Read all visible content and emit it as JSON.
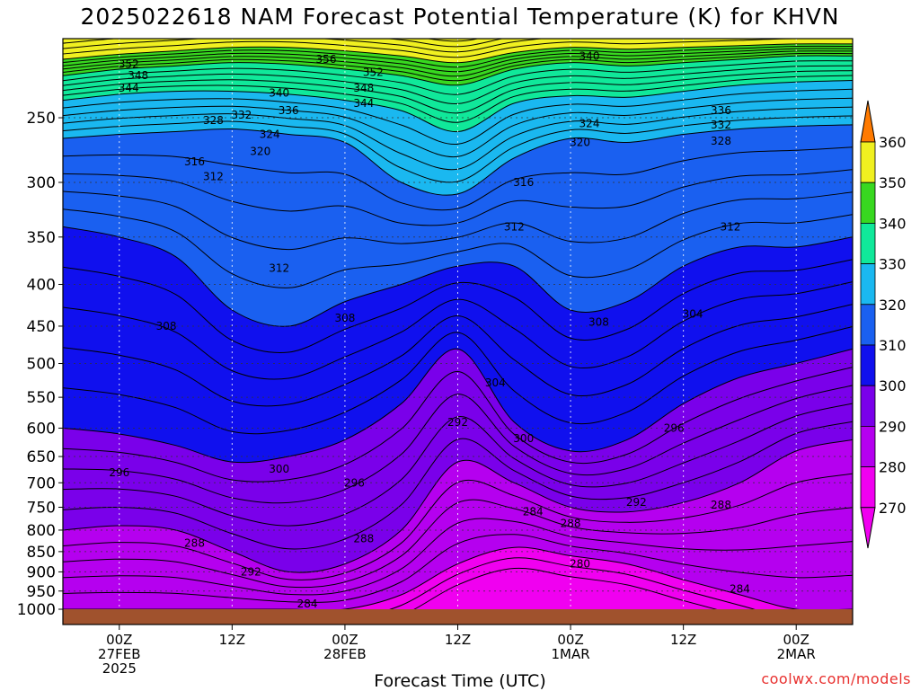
{
  "title": "2025022618 NAM Forecast Potential Temperature (K) for KHVN",
  "credit": "coolwx.com/models",
  "chart_data": {
    "type": "contour",
    "title": "2025022618 NAM Forecast Potential Temperature (K) for KHVN",
    "xlabel": "Forecast Time (UTC)",
    "ylabel": "",
    "y_scale": "log",
    "y_inverted": true,
    "ylim": [
      1000,
      200
    ],
    "xlim": [
      -6,
      78
    ],
    "x_units": "hours after 00Z 27FEB",
    "y_ticks": [
      250,
      300,
      350,
      400,
      450,
      500,
      550,
      600,
      650,
      700,
      750,
      800,
      850,
      900,
      950,
      1000
    ],
    "x_ticks": [
      {
        "x": 0,
        "lines": [
          "00Z",
          "27FEB",
          "2025"
        ]
      },
      {
        "x": 12,
        "lines": [
          "12Z"
        ]
      },
      {
        "x": 24,
        "lines": [
          "00Z",
          "28FEB"
        ]
      },
      {
        "x": 36,
        "lines": [
          "12Z"
        ]
      },
      {
        "x": 48,
        "lines": [
          "00Z",
          "1MAR"
        ]
      },
      {
        "x": 60,
        "lines": [
          "12Z"
        ]
      },
      {
        "x": 72,
        "lines": [
          "00Z",
          "2MAR"
        ]
      }
    ],
    "grid": true,
    "colorbar": {
      "levels": [
        270,
        280,
        290,
        300,
        310,
        320,
        330,
        340,
        350,
        360
      ],
      "colors": [
        "#f000f0",
        "#b500ef",
        "#7a00ea",
        "#1010ee",
        "#1a60f0",
        "#1ab8f0",
        "#10e89a",
        "#38d820",
        "#f0f020",
        "#ff7a00"
      ]
    },
    "contour_interval": 2,
    "contour_levels_labeled": [
      280,
      284,
      288,
      292,
      296,
      300,
      304,
      308,
      312,
      316,
      320,
      324,
      328,
      332,
      336,
      340,
      344,
      348,
      352,
      356
    ],
    "x_samples": [
      -6,
      0,
      6,
      12,
      18,
      24,
      30,
      36,
      42,
      48,
      54,
      60,
      66,
      72,
      78
    ],
    "isentrope_pressures": [
      {
        "theta": 280,
        "p": [
          1000,
          1000,
          1000,
          1000,
          1000,
          1000,
          960,
          880,
          840,
          860,
          880,
          920,
          960,
          1000,
          1000
        ]
      },
      {
        "theta": 290,
        "p": [
          800,
          790,
          800,
          850,
          900,
          880,
          800,
          660,
          700,
          750,
          760,
          740,
          700,
          640,
          620
        ]
      },
      {
        "theta": 300,
        "p": [
          600,
          610,
          630,
          660,
          650,
          620,
          560,
          480,
          590,
          640,
          620,
          560,
          520,
          500,
          480
        ]
      },
      {
        "theta": 310,
        "p": [
          340,
          350,
          370,
          430,
          450,
          420,
          400,
          380,
          380,
          430,
          420,
          380,
          360,
          360,
          350
        ]
      },
      {
        "theta": 320,
        "p": [
          265,
          262,
          260,
          258,
          262,
          268,
          300,
          310,
          280,
          265,
          268,
          262,
          258,
          256,
          255
        ]
      },
      {
        "theta": 330,
        "p": [
          238,
          234,
          232,
          232,
          234,
          238,
          245,
          260,
          240,
          235,
          236,
          232,
          228,
          226,
          225
        ]
      },
      {
        "theta": 340,
        "p": [
          222,
          218,
          216,
          214,
          215,
          218,
          222,
          228,
          218,
          214,
          216,
          214,
          212,
          210,
          210
        ]
      },
      {
        "theta": 350,
        "p": [
          212,
          209,
          207,
          205,
          205,
          207,
          210,
          214,
          208,
          205,
          206,
          205,
          204,
          203,
          203
        ]
      }
    ],
    "contour_labels": [
      {
        "value": "352",
        "x": 1,
        "p": 215
      },
      {
        "value": "348",
        "x": 2,
        "p": 222
      },
      {
        "value": "344",
        "x": 1,
        "p": 230
      },
      {
        "value": "356",
        "x": 22,
        "p": 212
      },
      {
        "value": "352",
        "x": 27,
        "p": 220
      },
      {
        "value": "348",
        "x": 26,
        "p": 230
      },
      {
        "value": "344",
        "x": 26,
        "p": 240
      },
      {
        "value": "340",
        "x": 17,
        "p": 233
      },
      {
        "value": "336",
        "x": 18,
        "p": 245
      },
      {
        "value": "332",
        "x": 13,
        "p": 248
      },
      {
        "value": "328",
        "x": 10,
        "p": 252
      },
      {
        "value": "324",
        "x": 16,
        "p": 262
      },
      {
        "value": "320",
        "x": 15,
        "p": 275
      },
      {
        "value": "316",
        "x": 8,
        "p": 283
      },
      {
        "value": "312",
        "x": 10,
        "p": 295
      },
      {
        "value": "312",
        "x": 17,
        "p": 382
      },
      {
        "value": "308",
        "x": 5,
        "p": 450
      },
      {
        "value": "308",
        "x": 24,
        "p": 440
      },
      {
        "value": "304",
        "x": 40,
        "p": 528
      },
      {
        "value": "292",
        "x": 36,
        "p": 590
      },
      {
        "value": "300",
        "x": 17,
        "p": 673
      },
      {
        "value": "300",
        "x": 43,
        "p": 618
      },
      {
        "value": "296",
        "x": 0,
        "p": 680
      },
      {
        "value": "296",
        "x": 25,
        "p": 700
      },
      {
        "value": "296",
        "x": 59,
        "p": 600
      },
      {
        "value": "316",
        "x": 43,
        "p": 300
      },
      {
        "value": "312",
        "x": 42,
        "p": 340
      },
      {
        "value": "320",
        "x": 49,
        "p": 268
      },
      {
        "value": "324",
        "x": 50,
        "p": 254
      },
      {
        "value": "340",
        "x": 50,
        "p": 210
      },
      {
        "value": "336",
        "x": 64,
        "p": 245
      },
      {
        "value": "332",
        "x": 64,
        "p": 255
      },
      {
        "value": "328",
        "x": 64,
        "p": 267
      },
      {
        "value": "312",
        "x": 65,
        "p": 340
      },
      {
        "value": "308",
        "x": 51,
        "p": 445
      },
      {
        "value": "304",
        "x": 61,
        "p": 435
      },
      {
        "value": "292",
        "x": 55,
        "p": 740
      },
      {
        "value": "288",
        "x": 64,
        "p": 745
      },
      {
        "value": "288",
        "x": 8,
        "p": 830
      },
      {
        "value": "288",
        "x": 26,
        "p": 820
      },
      {
        "value": "288",
        "x": 48,
        "p": 785
      },
      {
        "value": "284",
        "x": 44,
        "p": 760
      },
      {
        "value": "292",
        "x": 14,
        "p": 900
      },
      {
        "value": "284",
        "x": 20,
        "p": 985
      },
      {
        "value": "280",
        "x": 49,
        "p": 880
      },
      {
        "value": "284",
        "x": 66,
        "p": 945
      }
    ],
    "ground": {
      "color": "#a0522d",
      "p_top": 1000
    }
  }
}
